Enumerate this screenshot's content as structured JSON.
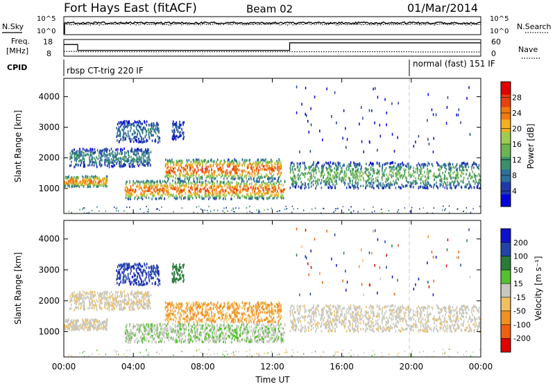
{
  "header": {
    "station": "Fort Hays East (fitACF)",
    "beam": "Beam 02",
    "date": "01/Mar/2014"
  },
  "noise_panel": {
    "left_label": "N.Sky",
    "right_label": "N.Search",
    "left_ticks": [
      "10^5",
      "10^0"
    ],
    "right_ticks": [
      "10^5",
      "10^0"
    ]
  },
  "freq_panel": {
    "left_label_line1": "Freq.",
    "left_label_line2": "[MHz]",
    "right_label": "Nave",
    "left_ticks": [
      "18",
      "8"
    ],
    "right_ticks": [
      "60",
      "0"
    ]
  },
  "cpid_panel": {
    "label": "CPID",
    "modes": [
      "rbsp CT-trig 220 IF",
      "normal (fast) 151 IF"
    ]
  },
  "time_axis": {
    "label": "Time UT",
    "ticks": [
      "00:00",
      "04:00",
      "08:00",
      "12:00",
      "16:00",
      "20:00",
      "00:00"
    ]
  },
  "range_axis": {
    "label": "Slant Range [km]",
    "ticks": [
      "1000",
      "2000",
      "3000",
      "4000"
    ]
  },
  "power_colorbar": {
    "label": "Power [dB]",
    "ticks": [
      "4",
      "8",
      "12",
      "16",
      "20",
      "24",
      "28"
    ]
  },
  "velocity_colorbar": {
    "label": "Velocity [m s⁻¹]",
    "ticks": [
      "200",
      "100",
      "50",
      "15",
      "-15",
      "-50",
      "-100",
      "-200"
    ]
  },
  "chart_data": {
    "type": "heatmap",
    "x_unit": "hours UT",
    "x_range": [
      0,
      24
    ],
    "y_range_km": [
      180,
      4600
    ],
    "frequency_mhz": {
      "x_hours": [
        0,
        0.8,
        0.8,
        13,
        13,
        24
      ],
      "values": [
        15,
        15,
        11.5,
        11.5,
        16,
        16
      ]
    },
    "nave": {
      "x_hours": [
        0,
        0.8,
        0.8,
        20,
        20,
        24
      ],
      "values": [
        17,
        17,
        16,
        16,
        15,
        15
      ]
    },
    "mode_change_hours": [
      0.8,
      20
    ],
    "power_scale": {
      "min": 0,
      "max": 32,
      "unit": "dB"
    },
    "velocity_scale": {
      "min": -250,
      "max": 250,
      "unit": "m s^-1"
    },
    "echo_regions": [
      {
        "x": [
          0.0,
          2.5
        ],
        "y": [
          1050,
          1400
        ],
        "power": 24,
        "velocity": -8
      },
      {
        "x": [
          0.3,
          5.0
        ],
        "y": [
          1700,
          2300
        ],
        "power": 10,
        "velocity": -10
      },
      {
        "x": [
          3.0,
          5.5
        ],
        "y": [
          2500,
          3200
        ],
        "power": 9,
        "velocity": 140
      },
      {
        "x": [
          6.2,
          6.9
        ],
        "y": [
          2600,
          3200
        ],
        "power": 7,
        "velocity": 60
      },
      {
        "x": [
          3.5,
          12.7
        ],
        "y": [
          650,
          1250
        ],
        "power": 25,
        "velocity": 12
      },
      {
        "x": [
          5.8,
          12.5
        ],
        "y": [
          1300,
          1950
        ],
        "power": 26,
        "velocity": -35
      },
      {
        "x": [
          13.0,
          24.0
        ],
        "y": [
          1000,
          1850
        ],
        "power": 14,
        "velocity": -5
      }
    ]
  }
}
